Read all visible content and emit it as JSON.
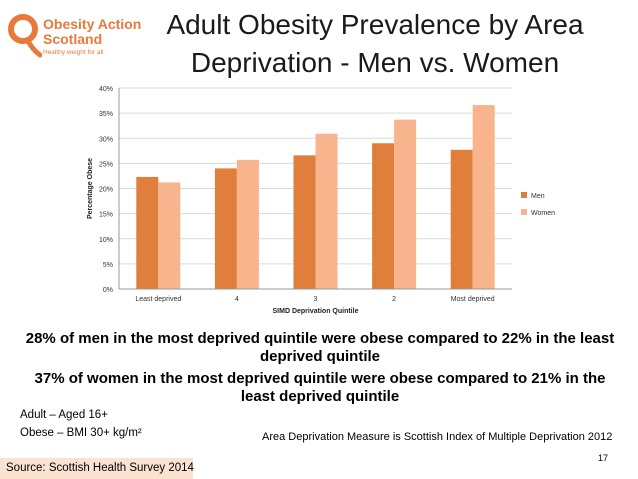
{
  "logo": {
    "org_line1": "Obesity Action",
    "org_line2": "Scotland",
    "tagline": "Healthy weight for all"
  },
  "title": {
    "line1": "Adult Obesity Prevalence by Area",
    "line2": "Deprivation - Men vs. Women"
  },
  "chart_data": {
    "type": "bar",
    "categories": [
      "Least deprived",
      "4",
      "3",
      "2",
      "Most deprived"
    ],
    "series": [
      {
        "name": "Men",
        "color": "#e07e3b",
        "values": [
          22.3,
          24,
          26.6,
          29,
          27.7
        ]
      },
      {
        "name": "Women",
        "color": "#f8b48d",
        "values": [
          21.2,
          25.7,
          30.9,
          33.7,
          36.6
        ]
      }
    ],
    "ylim": [
      0,
      40
    ],
    "yticks": [
      0,
      5,
      10,
      15,
      20,
      25,
      30,
      35,
      40
    ],
    "ytick_labels": [
      "0%",
      "5%",
      "10%",
      "15%",
      "20%",
      "25%",
      "30%",
      "35%",
      "40%"
    ],
    "xlabel": "SIMD Deprivation Quintile",
    "ylabel": "Percentage Obese",
    "legend_position": "right",
    "grid": true
  },
  "summary": {
    "men": "28% of men in the most deprived quintile were obese compared to 22% in the least deprived quintile",
    "women": "37% of women in the most deprived quintile were obese compared to 21% in the least deprived quintile"
  },
  "notes": {
    "age": "Adult – Aged 16+",
    "definition": "Obese – BMI 30+ kg/m²"
  },
  "measure_note": "Area Deprivation Measure is Scottish Index of Multiple Deprivation 2012",
  "page_number": "17",
  "source": "Source: Scottish Health Survey 2014"
}
